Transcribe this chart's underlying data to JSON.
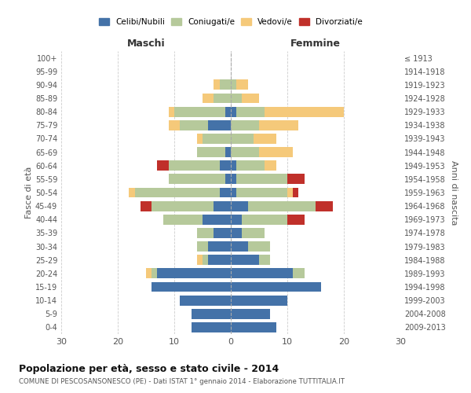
{
  "age_groups": [
    "0-4",
    "5-9",
    "10-14",
    "15-19",
    "20-24",
    "25-29",
    "30-34",
    "35-39",
    "40-44",
    "45-49",
    "50-54",
    "55-59",
    "60-64",
    "65-69",
    "70-74",
    "75-79",
    "80-84",
    "85-89",
    "90-94",
    "95-99",
    "100+"
  ],
  "birth_years": [
    "2009-2013",
    "2004-2008",
    "1999-2003",
    "1994-1998",
    "1989-1993",
    "1984-1988",
    "1979-1983",
    "1974-1978",
    "1969-1973",
    "1964-1968",
    "1959-1963",
    "1954-1958",
    "1949-1953",
    "1944-1948",
    "1939-1943",
    "1934-1938",
    "1929-1933",
    "1924-1928",
    "1919-1923",
    "1914-1918",
    "≤ 1913"
  ],
  "male": {
    "celibi": [
      7,
      7,
      9,
      14,
      13,
      4,
      4,
      3,
      5,
      3,
      2,
      1,
      2,
      1,
      0,
      4,
      1,
      0,
      0,
      0,
      0
    ],
    "coniugati": [
      0,
      0,
      0,
      0,
      1,
      1,
      2,
      3,
      7,
      11,
      15,
      10,
      9,
      5,
      5,
      5,
      9,
      3,
      2,
      0,
      0
    ],
    "vedovi": [
      0,
      0,
      0,
      0,
      1,
      1,
      0,
      0,
      0,
      0,
      1,
      0,
      0,
      0,
      1,
      2,
      1,
      2,
      1,
      0,
      0
    ],
    "divorziati": [
      0,
      0,
      0,
      0,
      0,
      0,
      0,
      0,
      0,
      2,
      0,
      0,
      2,
      0,
      0,
      0,
      0,
      0,
      0,
      0,
      0
    ]
  },
  "female": {
    "nubili": [
      8,
      7,
      10,
      16,
      11,
      5,
      3,
      2,
      2,
      3,
      1,
      1,
      1,
      0,
      0,
      0,
      1,
      0,
      0,
      0,
      0
    ],
    "coniugate": [
      0,
      0,
      0,
      0,
      2,
      2,
      4,
      4,
      8,
      12,
      9,
      9,
      5,
      5,
      4,
      5,
      5,
      2,
      1,
      0,
      0
    ],
    "vedove": [
      0,
      0,
      0,
      0,
      0,
      0,
      0,
      0,
      0,
      0,
      1,
      0,
      2,
      6,
      4,
      7,
      14,
      3,
      2,
      0,
      0
    ],
    "divorziate": [
      0,
      0,
      0,
      0,
      0,
      0,
      0,
      0,
      3,
      3,
      1,
      3,
      0,
      0,
      0,
      0,
      0,
      0,
      0,
      0,
      0
    ]
  },
  "colors": {
    "celibi": "#4472a8",
    "coniugati": "#b6c99b",
    "vedovi": "#f5c97a",
    "divorziati": "#c0302a"
  },
  "title": "Popolazione per età, sesso e stato civile - 2014",
  "subtitle": "COMUNE DI PESCOSANSONESCO (PE) - Dati ISTAT 1° gennaio 2014 - Elaborazione TUTTITALIA.IT",
  "xlabel_left": "Maschi",
  "xlabel_right": "Femmine",
  "ylabel_left": "Fasce di età",
  "ylabel_right": "Anni di nascita",
  "xlim": 30,
  "bg_color": "#ffffff",
  "grid_color": "#cccccc",
  "legend_labels": [
    "Celibi/Nubili",
    "Coniugati/e",
    "Vedovi/e",
    "Divorziati/e"
  ]
}
